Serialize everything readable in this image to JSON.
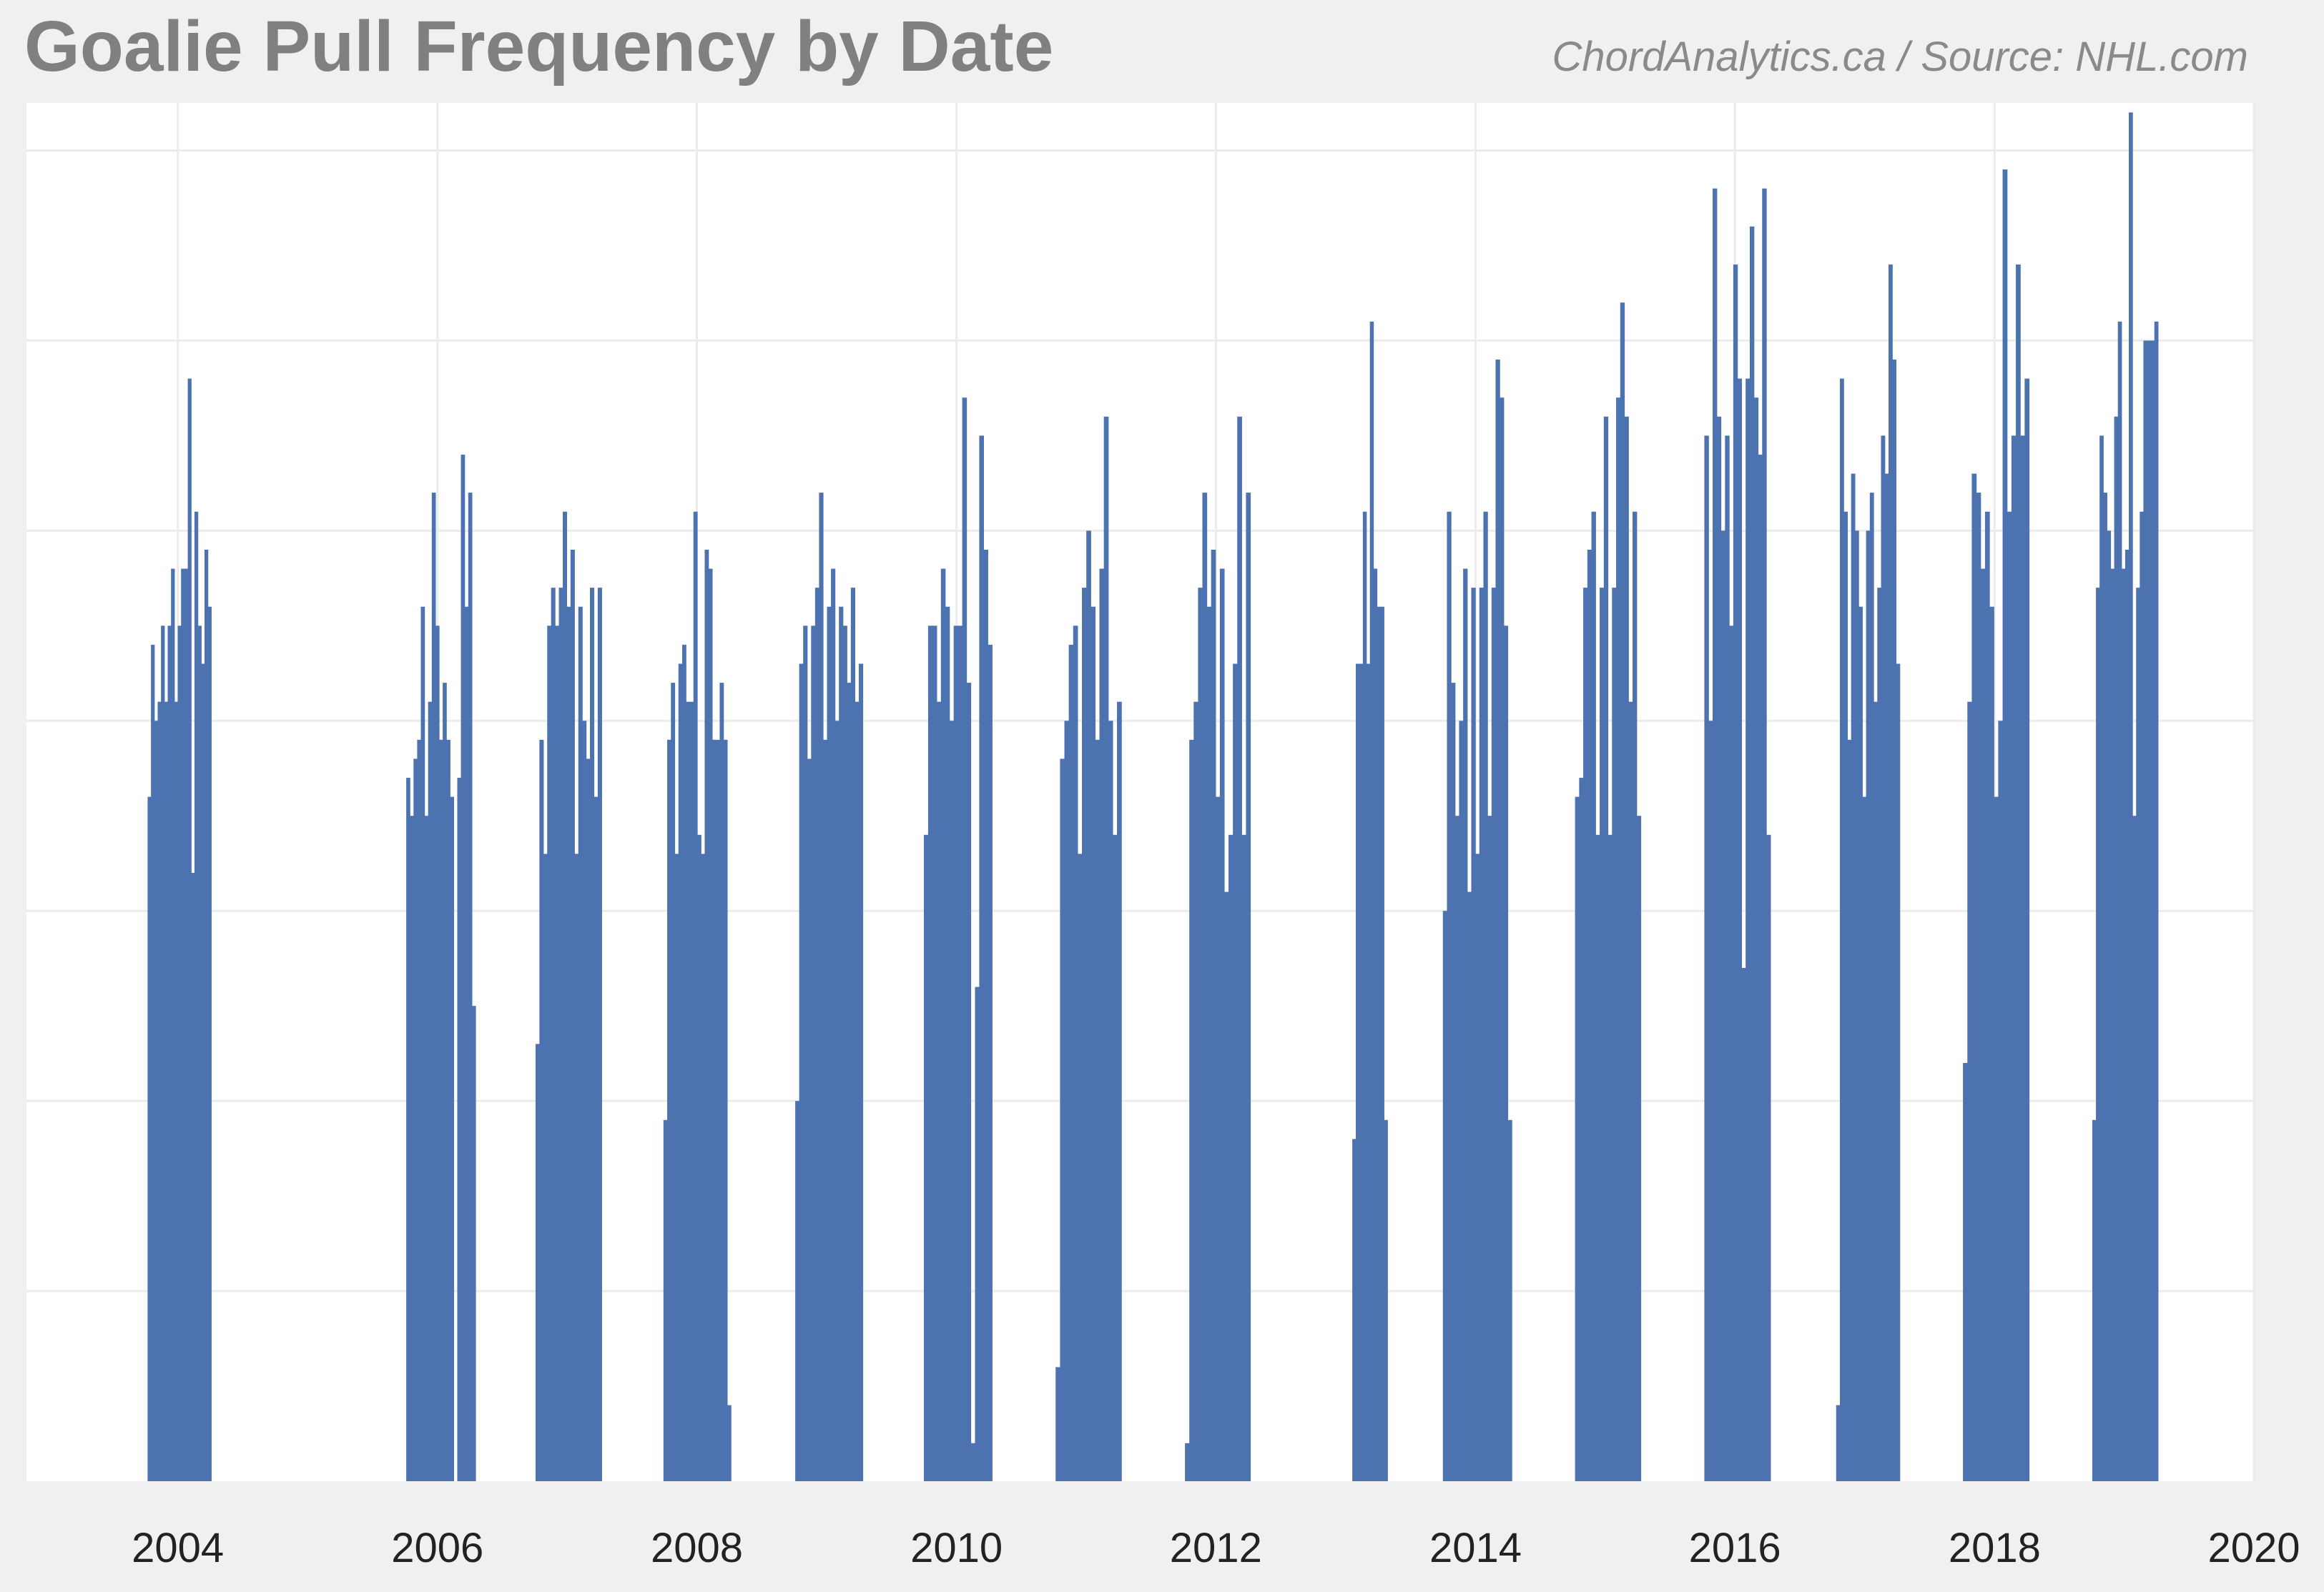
{
  "chart_data": {
    "type": "bar",
    "title": "Goalie Pull Frequency by Date",
    "subtitle": "ChordAnalytics.ca  /  Source: NHL.com",
    "xlabel": "",
    "ylabel": "",
    "x_axis": "date",
    "xlim": [
      "2002-11-01",
      "2020-01-01"
    ],
    "ylim": [
      0,
      7.25
    ],
    "x_ticks": [
      "2004",
      "2006",
      "2008",
      "2010",
      "2012",
      "2014",
      "2016",
      "2018",
      "2020"
    ],
    "y_tick_values": [
      1,
      2,
      3,
      4,
      5,
      6,
      7
    ],
    "y_tick_labels_shown": false,
    "grid": true,
    "legend": "none",
    "bar_color": "#4c72b0",
    "series": [
      {
        "values_by_season": [
          {
            "start": "2003-10-08",
            "end": "2004-04-04",
            "values": [
              3.6,
              4.4,
              4.0,
              4.1,
              4.5,
              4.1,
              4.5,
              4.8,
              4.1,
              4.5,
              4.8,
              4.8,
              5.8,
              3.2,
              5.1,
              4.5,
              4.3,
              4.9,
              4.6
            ]
          },
          {
            "start": "2005-10-05",
            "end": "2006-04-18",
            "values": [
              3.7,
              3.5,
              3.8,
              3.9,
              4.6,
              3.5,
              4.1,
              5.2,
              4.5,
              3.9,
              4.2,
              3.9,
              3.6,
              0.0,
              3.7,
              5.4,
              4.6,
              5.2,
              2.5
            ]
          },
          {
            "start": "2006-10-04",
            "end": "2007-04-08",
            "values": [
              2.3,
              3.9,
              3.3,
              4.5,
              4.7,
              4.5,
              4.7,
              5.1,
              4.6,
              4.9,
              3.3,
              4.6,
              4.0,
              3.8,
              4.7,
              3.6,
              4.7
            ]
          },
          {
            "start": "2007-09-29",
            "end": "2008-04-06",
            "values": [
              1.9,
              3.9,
              4.2,
              3.3,
              4.3,
              4.4,
              4.1,
              4.1,
              5.1,
              3.4,
              3.3,
              4.9,
              4.8,
              3.9,
              3.9,
              4.2,
              3.9,
              0.4
            ]
          },
          {
            "start": "2008-10-04",
            "end": "2009-04-12",
            "values": [
              2.0,
              4.3,
              4.5,
              3.8,
              4.5,
              4.7,
              5.2,
              3.9,
              4.6,
              4.8,
              4.0,
              4.6,
              4.5,
              4.2,
              4.7,
              4.1,
              4.3
            ]
          },
          {
            "start": "2009-10-01",
            "end": "2010-04-11",
            "values": [
              3.4,
              4.5,
              4.5,
              4.1,
              4.8,
              4.6,
              4.0,
              4.5,
              4.5,
              5.7,
              4.2,
              0.2,
              2.6,
              5.5,
              4.9,
              4.4
            ]
          },
          {
            "start": "2009-10-01",
            "end": "2010-04-11",
            "values": []
          },
          {
            "start": "2010-10-07",
            "end": "2011-04-10",
            "values": [
              0.6,
              3.8,
              4.0,
              4.4,
              4.5,
              3.3,
              4.7,
              5.0,
              4.6,
              3.9,
              4.8,
              5.6,
              4.0,
              3.4,
              4.1
            ]
          },
          {
            "start": "2011-10-06",
            "end": "2012-04-07",
            "values": [
              0.2,
              3.9,
              4.1,
              4.7,
              5.2,
              4.6,
              4.9,
              3.6,
              4.8,
              3.1,
              3.4,
              4.3,
              5.6,
              3.4,
              5.2
            ]
          },
          {
            "start": "2013-01-19",
            "end": "2013-04-28",
            "values": [
              1.8,
              4.3,
              4.3,
              5.1,
              4.3,
              6.1,
              4.8,
              4.6,
              4.6,
              1.9
            ]
          },
          {
            "start": "2013-10-01",
            "end": "2014-04-13",
            "values": [
              3.0,
              5.1,
              4.2,
              3.5,
              4.0,
              4.8,
              3.1,
              4.7,
              3.3,
              4.7,
              5.1,
              3.5,
              4.7,
              5.9,
              5.7,
              4.5,
              1.9
            ]
          },
          {
            "start": "2014-10-08",
            "end": "2015-04-11",
            "values": [
              3.6,
              3.7,
              4.7,
              4.9,
              5.1,
              3.4,
              4.7,
              5.6,
              3.4,
              4.7,
              5.7,
              6.2,
              5.6,
              4.1,
              5.1,
              3.5
            ]
          },
          {
            "start": "2015-10-07",
            "end": "2016-04-10",
            "values": [
              5.5,
              4.0,
              6.8,
              5.6,
              5.0,
              5.5,
              4.5,
              6.4,
              5.8,
              2.7,
              5.8,
              6.6,
              5.7,
              5.4,
              6.8,
              3.4
            ]
          },
          {
            "start": "2016-10-12",
            "end": "2017-04-09",
            "values": [
              0.4,
              5.8,
              5.1,
              3.9,
              5.3,
              5.0,
              4.6,
              3.6,
              5.0,
              5.2,
              4.1,
              4.7,
              5.5,
              5.3,
              6.4,
              5.9,
              4.3
            ]
          },
          {
            "start": "2017-10-04",
            "end": "2018-04-08",
            "values": [
              2.2,
              4.1,
              5.3,
              5.2,
              4.8,
              5.1,
              4.6,
              3.6,
              4.0,
              6.9,
              5.1,
              5.5,
              6.4,
              5.5,
              5.8
            ]
          },
          {
            "start": "2018-10-03",
            "end": "2019-04-06",
            "values": [
              1.9,
              4.7,
              5.5,
              5.2,
              5.0,
              4.8,
              5.6,
              6.1,
              4.8,
              4.9,
              7.2,
              3.5,
              4.7,
              5.1,
              6.0,
              6.0,
              6.0,
              6.1
            ]
          }
        ]
      }
    ]
  }
}
